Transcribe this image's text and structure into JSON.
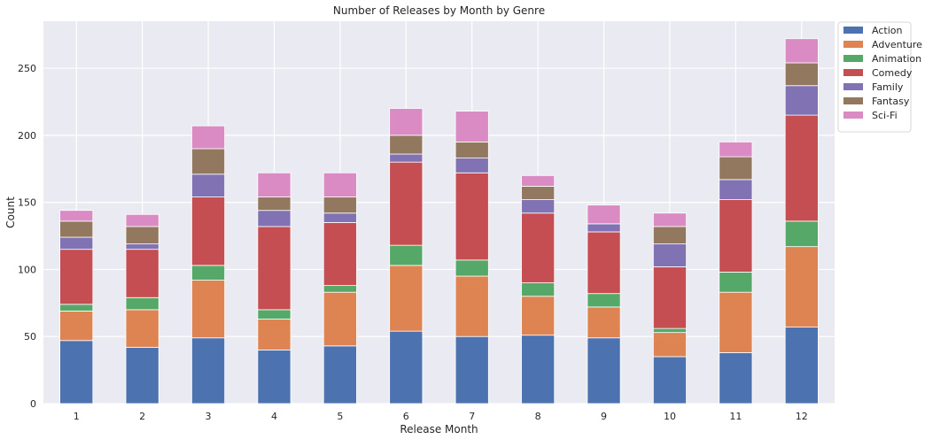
{
  "chart_data": {
    "type": "bar",
    "stacked": true,
    "title": "Number of Releases by Month by Genre",
    "xlabel": "Release Month",
    "ylabel": "Count",
    "categories": [
      "1",
      "2",
      "3",
      "4",
      "5",
      "6",
      "7",
      "8",
      "9",
      "10",
      "11",
      "12"
    ],
    "ylim": [
      0,
      285
    ],
    "yticks": [
      0,
      50,
      100,
      150,
      200,
      250
    ],
    "grid": true,
    "legend_position": "outside-top-right",
    "series": [
      {
        "name": "Action",
        "color": "#4c72b0",
        "values": [
          47,
          42,
          49,
          40,
          43,
          54,
          50,
          51,
          49,
          35,
          38,
          57
        ]
      },
      {
        "name": "Adventure",
        "color": "#dd8452",
        "values": [
          22,
          28,
          43,
          23,
          40,
          49,
          45,
          29,
          23,
          18,
          45,
          60
        ]
      },
      {
        "name": "Animation",
        "color": "#55a868",
        "values": [
          5,
          9,
          11,
          7,
          5,
          15,
          12,
          10,
          10,
          3,
          15,
          19
        ]
      },
      {
        "name": "Comedy",
        "color": "#c44e52",
        "values": [
          41,
          36,
          51,
          62,
          47,
          62,
          65,
          52,
          46,
          46,
          54,
          79
        ]
      },
      {
        "name": "Family",
        "color": "#8172b3",
        "values": [
          9,
          4,
          17,
          12,
          7,
          6,
          11,
          10,
          6,
          17,
          15,
          22
        ]
      },
      {
        "name": "Fantasy",
        "color": "#937860",
        "values": [
          12,
          13,
          19,
          10,
          12,
          14,
          12,
          10,
          0,
          13,
          17,
          17
        ]
      },
      {
        "name": "Sci-Fi",
        "color": "#da8bc3",
        "values": [
          8,
          9,
          17,
          18,
          18,
          20,
          23,
          8,
          14,
          10,
          11,
          18
        ]
      }
    ]
  }
}
